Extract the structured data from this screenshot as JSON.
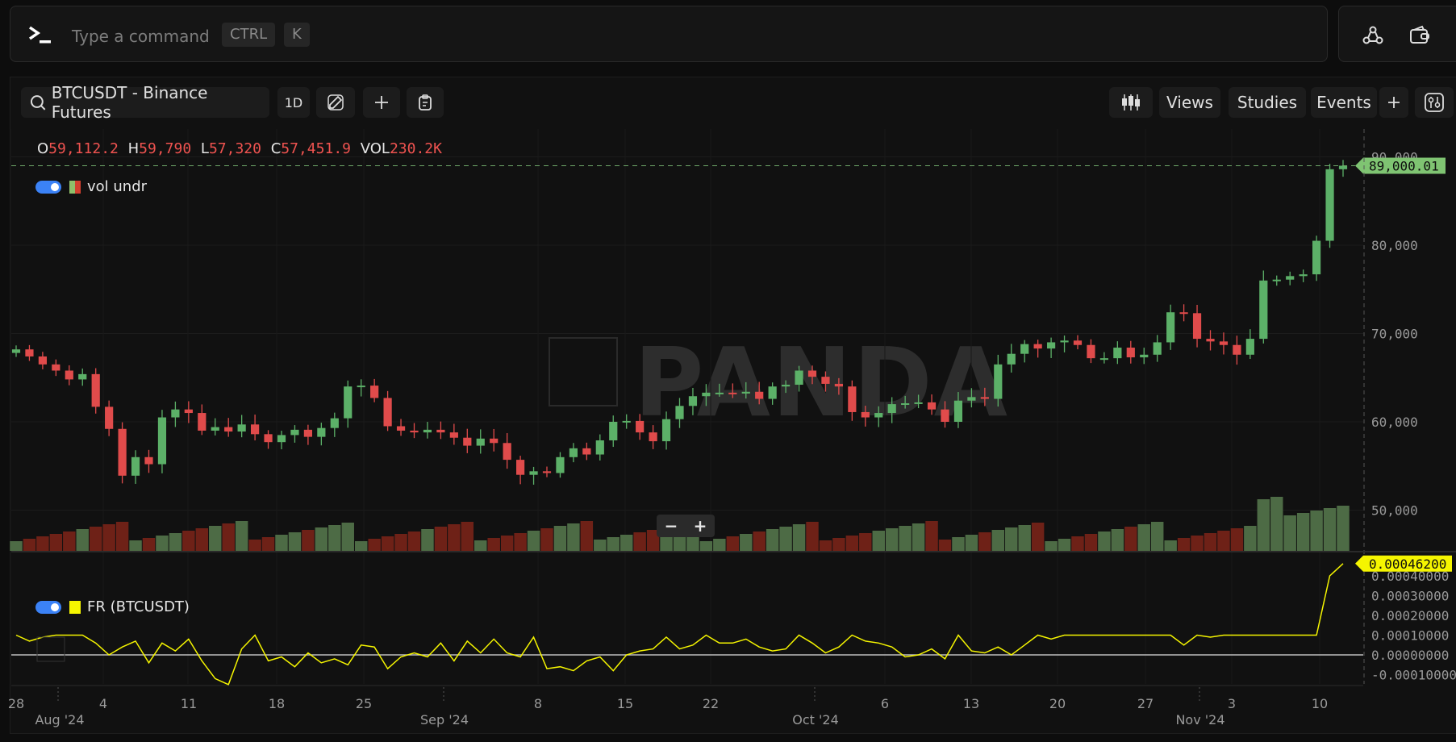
{
  "command_bar": {
    "placeholder": "Type a command",
    "key1": "CTRL",
    "key2": "K"
  },
  "top_right_icons": [
    "network-icon",
    "wallet-icon",
    "more-icon"
  ],
  "toolbar": {
    "symbol": "BTCUSDT - Binance Futures",
    "interval": "1D",
    "views": "Views",
    "studies": "Studies",
    "events": "Events"
  },
  "ohlc": {
    "o_label": "O",
    "o": "59,112.2",
    "h_label": "H",
    "h": "59,790",
    "l_label": "L",
    "l": "57,320",
    "c_label": "C",
    "c": "57,451.9",
    "vol_label": "VOL",
    "vol": "230.2K"
  },
  "legends": {
    "volume": "vol undr",
    "funding": "FR (BTCUSDT)"
  },
  "watermark": "PANDA",
  "zoom": {
    "minus": "−",
    "plus": "+"
  },
  "colors": {
    "up": "#5cb068",
    "down": "#e04b4b",
    "vol_up": "#4d6b45",
    "vol_down": "#6e2117",
    "fr": "#f5f500",
    "last": "#7fc472"
  },
  "chart_data": [
    {
      "type": "candlestick",
      "symbol": "BTCUSDT",
      "y_ticks": [
        "90,000",
        "80,000",
        "70,000",
        "60,000",
        "50,000"
      ],
      "ylim": [
        48000,
        92000
      ],
      "last_price_label": "89,000.01",
      "x_ticks": [
        "28",
        "4",
        "11",
        "18",
        "25",
        "8",
        "15",
        "22",
        "6",
        "13",
        "20",
        "27",
        "3",
        "10"
      ],
      "month_labels": [
        "Aug '24",
        "Sep '24",
        "Oct '24",
        "Nov '24"
      ],
      "closes": [
        68200,
        67400,
        66500,
        65800,
        64800,
        65400,
        61700,
        59200,
        53900,
        56000,
        55200,
        60500,
        61400,
        61000,
        59000,
        59400,
        58900,
        59700,
        58600,
        57700,
        58500,
        59100,
        58300,
        59300,
        60400,
        64000,
        64100,
        62700,
        59500,
        59000,
        58800,
        59100,
        58800,
        58200,
        57300,
        58100,
        57600,
        55700,
        54000,
        54400,
        54200,
        56000,
        57000,
        56300,
        57900,
        60000,
        60100,
        58800,
        57800,
        60300,
        61800,
        62900,
        63300,
        63300,
        63200,
        63400,
        62600,
        64000,
        64200,
        65800,
        65100,
        64300,
        64000,
        61100,
        60500,
        61000,
        62000,
        62100,
        62200,
        61400,
        60000,
        62400,
        62800,
        62600,
        66500,
        67700,
        68800,
        68300,
        69000,
        69200,
        68700,
        67200,
        67200,
        68400,
        67300,
        67600,
        69000,
        72400,
        72300,
        69400,
        69100,
        68700,
        67600,
        69400,
        76000,
        76100,
        76500,
        76700,
        80500,
        88600,
        89000
      ]
    },
    {
      "type": "line",
      "name": "FR (BTCUSDT)",
      "y_ticks": [
        "0.00040000",
        "0.00030000",
        "0.00020000",
        "0.00010000",
        "0.00000000",
        "-0.00010000"
      ],
      "ylim": [
        -0.00018,
        0.00052
      ],
      "last_value_label": "0.00046200",
      "values": [
        0.0001,
        7e-05,
        9e-05,
        0.0001,
        0.0001,
        0.0001,
        6e-05,
        0.0,
        4e-05,
        7e-05,
        -4e-05,
        6e-05,
        2e-05,
        8e-05,
        -3e-05,
        -0.00012,
        -0.00015,
        3e-05,
        0.0001,
        -3e-05,
        -1e-05,
        -6e-05,
        1e-05,
        -4e-05,
        -2e-05,
        -5e-05,
        5e-05,
        4e-05,
        -7e-05,
        -1e-05,
        1e-05,
        -1e-05,
        6e-05,
        -3e-05,
        7e-05,
        1e-05,
        8e-05,
        1e-05,
        -1e-05,
        9e-05,
        -7e-05,
        -6e-05,
        -8e-05,
        -3e-05,
        -1e-05,
        -8e-05,
        0.0,
        2e-05,
        3e-05,
        9e-05,
        3e-05,
        5e-05,
        0.0001,
        6e-05,
        6e-05,
        8e-05,
        4e-05,
        2e-05,
        3e-05,
        0.0001,
        6e-05,
        1e-05,
        4e-05,
        0.0001,
        7e-05,
        6e-05,
        4e-05,
        -1e-05,
        0.0,
        3e-05,
        -2e-05,
        0.0001,
        2e-05,
        1e-05,
        4e-05,
        0.0,
        5e-05,
        0.0001,
        8e-05,
        0.0001,
        0.0001,
        0.0001,
        0.0001,
        0.0001,
        0.0001,
        0.0001,
        0.0001,
        0.0001,
        5e-05,
        0.0001,
        9e-05,
        0.0001,
        0.0001,
        0.0001,
        0.0001,
        0.0001,
        0.0001,
        0.0001,
        0.0001,
        0.0004,
        0.000462
      ]
    }
  ]
}
